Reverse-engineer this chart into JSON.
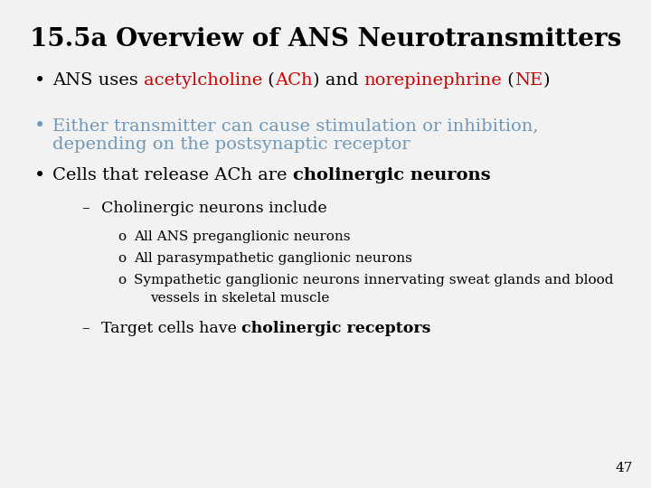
{
  "title": "15.5a Overview of ANS Neurotransmitters",
  "title_fontsize": 20,
  "title_color": "#000000",
  "background_color": "#f2f2f2",
  "page_number": "47",
  "bullet1_parts": [
    {
      "text": "ANS uses ",
      "color": "#000000",
      "bold": false
    },
    {
      "text": "acetylcholine",
      "color": "#cc0000",
      "bold": false
    },
    {
      "text": " (",
      "color": "#000000",
      "bold": false
    },
    {
      "text": "ACh",
      "color": "#cc0000",
      "bold": false
    },
    {
      "text": ") and ",
      "color": "#000000",
      "bold": false
    },
    {
      "text": "norepinephrine",
      "color": "#cc0000",
      "bold": false
    },
    {
      "text": " (",
      "color": "#000000",
      "bold": false
    },
    {
      "text": "NE",
      "color": "#cc0000",
      "bold": false
    },
    {
      "text": ")",
      "color": "#000000",
      "bold": false
    }
  ],
  "bullet2_line1": "Either transmitter can cause stimulation or inhibition,",
  "bullet2_line2": "depending on the postsynaptic receptor",
  "bullet2_color": "#7098b8",
  "bullet3_parts": [
    {
      "text": "Cells that release ACh are ",
      "color": "#000000",
      "bold": false
    },
    {
      "text": "cholinergic neurons",
      "color": "#000000",
      "bold": true
    }
  ],
  "dash1_text": "Cholinergic neurons include",
  "sub1_text": "All ANS preganglionic neurons",
  "sub2_text": "All parasympathetic ganglionic neurons",
  "sub3_line1": "Sympathetic ganglionic neurons innervating sweat glands and blood",
  "sub3_line2": "vessels in skeletal muscle",
  "dash2_parts": [
    {
      "text": "Target cells have ",
      "color": "#000000",
      "bold": false
    },
    {
      "text": "cholinergic receptors",
      "color": "#000000",
      "bold": true
    }
  ],
  "font_family": "DejaVu Serif",
  "title_fs": 20,
  "bullet_fs": 14,
  "sub_fs": 12.5,
  "subsub_fs": 11
}
